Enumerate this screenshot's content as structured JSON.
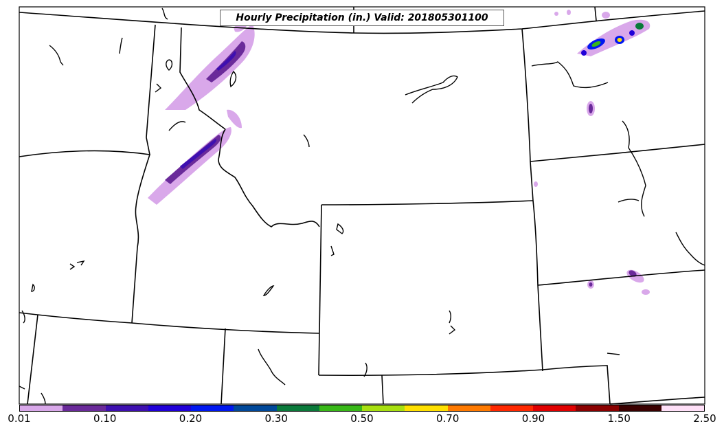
{
  "title": "Hourly Precipitation (in.) Valid: 201805301100",
  "colorbar": {
    "colors": [
      "#d9a8ea",
      "#6a2a9a",
      "#3e0fb0",
      "#2000d8",
      "#0018f0",
      "#00489a",
      "#0a7a3a",
      "#38b818",
      "#a8e010",
      "#ffe000",
      "#ff7a00",
      "#ff2800",
      "#e00000",
      "#8a0000",
      "#3a0000",
      "#ffe0f8"
    ],
    "ticks": [
      {
        "label": "0.01",
        "frac": 0.0
      },
      {
        "label": "0.10",
        "frac": 0.125
      },
      {
        "label": "0.20",
        "frac": 0.25
      },
      {
        "label": "0.30",
        "frac": 0.375
      },
      {
        "label": "0.50",
        "frac": 0.5
      },
      {
        "label": "0.70",
        "frac": 0.625
      },
      {
        "label": "0.90",
        "frac": 0.75
      },
      {
        "label": "1.50",
        "frac": 0.875
      },
      {
        "label": "2.50",
        "frac": 1.0
      }
    ]
  },
  "icons": [
    "precipitation-map"
  ]
}
